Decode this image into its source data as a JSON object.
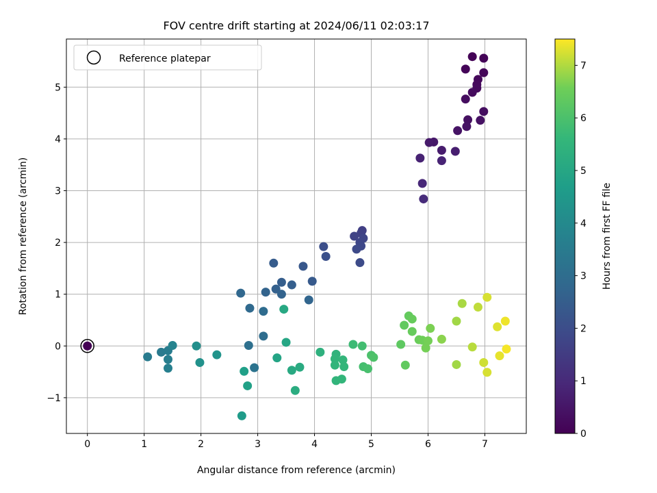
{
  "chart_data": {
    "type": "scatter",
    "title": "FOV centre drift starting at 2024/06/11 02:03:17",
    "xlabel": "Angular distance from reference (arcmin)",
    "ylabel": "Rotation from reference (arcmin)",
    "colorbar_label": "Hours from first FF file",
    "xlim": [
      -0.37,
      7.73
    ],
    "ylim": [
      -1.69,
      5.93
    ],
    "x_ticks": [
      0,
      1,
      2,
      3,
      4,
      5,
      6,
      7
    ],
    "y_ticks": [
      -1,
      0,
      1,
      2,
      3,
      4,
      5
    ],
    "colorbar_range": [
      0,
      7.5
    ],
    "colorbar_ticks": [
      0,
      1,
      2,
      3,
      4,
      5,
      6,
      7
    ],
    "grid": true,
    "legend_position": "top-left",
    "colormap": "viridis",
    "legend": [
      {
        "label": "Reference platepar",
        "marker": "open-circle"
      }
    ],
    "reference_point": {
      "x": 0,
      "y": 0,
      "hours": 0
    },
    "points": [
      {
        "x": 6.78,
        "y": 5.59,
        "h": 0.05
      },
      {
        "x": 6.98,
        "y": 5.56,
        "h": 0.08
      },
      {
        "x": 6.66,
        "y": 5.35,
        "h": 0.1
      },
      {
        "x": 6.98,
        "y": 5.28,
        "h": 0.13
      },
      {
        "x": 6.88,
        "y": 5.15,
        "h": 0.16
      },
      {
        "x": 6.86,
        "y": 5.05,
        "h": 0.19
      },
      {
        "x": 6.86,
        "y": 4.98,
        "h": 0.22
      },
      {
        "x": 6.78,
        "y": 4.9,
        "h": 0.25
      },
      {
        "x": 6.66,
        "y": 4.77,
        "h": 0.28
      },
      {
        "x": 6.98,
        "y": 4.53,
        "h": 0.32
      },
      {
        "x": 6.7,
        "y": 4.37,
        "h": 0.35
      },
      {
        "x": 6.92,
        "y": 4.36,
        "h": 0.38
      },
      {
        "x": 6.68,
        "y": 4.24,
        "h": 0.41
      },
      {
        "x": 6.52,
        "y": 4.16,
        "h": 0.44
      },
      {
        "x": 6.1,
        "y": 3.94,
        "h": 0.55
      },
      {
        "x": 6.02,
        "y": 3.93,
        "h": 0.6
      },
      {
        "x": 6.24,
        "y": 3.78,
        "h": 0.65
      },
      {
        "x": 6.48,
        "y": 3.76,
        "h": 0.7
      },
      {
        "x": 5.86,
        "y": 3.63,
        "h": 0.8
      },
      {
        "x": 6.24,
        "y": 3.58,
        "h": 0.85
      },
      {
        "x": 5.9,
        "y": 3.14,
        "h": 0.95
      },
      {
        "x": 5.92,
        "y": 2.84,
        "h": 1.05
      },
      {
        "x": 4.84,
        "y": 2.23,
        "h": 1.6
      },
      {
        "x": 4.82,
        "y": 2.18,
        "h": 1.65
      },
      {
        "x": 4.7,
        "y": 2.12,
        "h": 1.7
      },
      {
        "x": 4.86,
        "y": 2.08,
        "h": 1.75
      },
      {
        "x": 4.8,
        "y": 2.0,
        "h": 1.8
      },
      {
        "x": 4.82,
        "y": 1.93,
        "h": 1.85
      },
      {
        "x": 4.74,
        "y": 1.87,
        "h": 1.9
      },
      {
        "x": 4.8,
        "y": 1.61,
        "h": 1.95
      },
      {
        "x": 4.16,
        "y": 1.92,
        "h": 2.05
      },
      {
        "x": 4.2,
        "y": 1.73,
        "h": 2.1
      },
      {
        "x": 3.8,
        "y": 1.54,
        "h": 2.3
      },
      {
        "x": 3.28,
        "y": 1.6,
        "h": 2.45
      },
      {
        "x": 3.96,
        "y": 1.25,
        "h": 2.4
      },
      {
        "x": 3.42,
        "y": 1.23,
        "h": 2.5
      },
      {
        "x": 3.6,
        "y": 1.18,
        "h": 2.55
      },
      {
        "x": 3.32,
        "y": 1.1,
        "h": 2.6
      },
      {
        "x": 3.14,
        "y": 1.04,
        "h": 2.7
      },
      {
        "x": 3.42,
        "y": 1.0,
        "h": 2.65
      },
      {
        "x": 2.7,
        "y": 1.02,
        "h": 2.8
      },
      {
        "x": 3.9,
        "y": 0.89,
        "h": 2.75
      },
      {
        "x": 2.86,
        "y": 0.73,
        "h": 2.9
      },
      {
        "x": 3.1,
        "y": 0.67,
        "h": 2.95
      },
      {
        "x": 3.1,
        "y": 0.19,
        "h": 3.0
      },
      {
        "x": 2.84,
        "y": 0.01,
        "h": 3.1
      },
      {
        "x": 2.94,
        "y": -0.42,
        "h": 3.2
      },
      {
        "x": 1.3,
        "y": -0.12,
        "h": 3.45
      },
      {
        "x": 1.06,
        "y": -0.21,
        "h": 3.5
      },
      {
        "x": 1.42,
        "y": -0.09,
        "h": 3.55
      },
      {
        "x": 1.42,
        "y": -0.26,
        "h": 3.6
      },
      {
        "x": 1.42,
        "y": -0.43,
        "h": 3.65
      },
      {
        "x": 1.5,
        "y": 0.01,
        "h": 3.8
      },
      {
        "x": 1.92,
        "y": 0.0,
        "h": 4.2
      },
      {
        "x": 1.98,
        "y": -0.32,
        "h": 4.25
      },
      {
        "x": 2.28,
        "y": -0.17,
        "h": 4.35
      },
      {
        "x": 2.72,
        "y": -1.35,
        "h": 4.6
      },
      {
        "x": 2.76,
        "y": -0.49,
        "h": 4.75
      },
      {
        "x": 2.82,
        "y": -0.77,
        "h": 4.8
      },
      {
        "x": 3.34,
        "y": -0.23,
        "h": 4.9
      },
      {
        "x": 3.5,
        "y": 0.07,
        "h": 5.0
      },
      {
        "x": 3.46,
        "y": 0.71,
        "h": 5.05
      },
      {
        "x": 3.6,
        "y": -0.47,
        "h": 5.1
      },
      {
        "x": 3.74,
        "y": -0.41,
        "h": 5.15
      },
      {
        "x": 3.66,
        "y": -0.86,
        "h": 5.2
      },
      {
        "x": 4.1,
        "y": -0.12,
        "h": 5.35
      },
      {
        "x": 4.38,
        "y": -0.16,
        "h": 5.45
      },
      {
        "x": 4.36,
        "y": -0.25,
        "h": 5.5
      },
      {
        "x": 4.36,
        "y": -0.37,
        "h": 5.5
      },
      {
        "x": 4.5,
        "y": -0.27,
        "h": 5.55
      },
      {
        "x": 4.52,
        "y": -0.4,
        "h": 5.55
      },
      {
        "x": 4.38,
        "y": -0.67,
        "h": 5.5
      },
      {
        "x": 4.48,
        "y": -0.64,
        "h": 5.55
      },
      {
        "x": 4.68,
        "y": 0.03,
        "h": 5.75
      },
      {
        "x": 4.84,
        "y": 0.0,
        "h": 5.85
      },
      {
        "x": 4.86,
        "y": -0.4,
        "h": 5.9
      },
      {
        "x": 4.94,
        "y": -0.44,
        "h": 5.95
      },
      {
        "x": 5.0,
        "y": -0.18,
        "h": 6.0
      },
      {
        "x": 5.04,
        "y": -0.22,
        "h": 6.05
      },
      {
        "x": 5.52,
        "y": 0.03,
        "h": 6.3
      },
      {
        "x": 5.58,
        "y": 0.4,
        "h": 6.35
      },
      {
        "x": 5.6,
        "y": -0.37,
        "h": 6.35
      },
      {
        "x": 5.66,
        "y": 0.58,
        "h": 6.4
      },
      {
        "x": 5.72,
        "y": 0.52,
        "h": 6.45
      },
      {
        "x": 5.72,
        "y": 0.28,
        "h": 6.45
      },
      {
        "x": 5.84,
        "y": 0.12,
        "h": 6.5
      },
      {
        "x": 5.9,
        "y": 0.11,
        "h": 6.55
      },
      {
        "x": 5.96,
        "y": -0.04,
        "h": 6.6
      },
      {
        "x": 6.0,
        "y": 0.1,
        "h": 6.6
      },
      {
        "x": 6.04,
        "y": 0.34,
        "h": 6.65
      },
      {
        "x": 6.24,
        "y": 0.13,
        "h": 6.75
      },
      {
        "x": 6.5,
        "y": 0.48,
        "h": 6.9
      },
      {
        "x": 6.5,
        "y": -0.36,
        "h": 6.9
      },
      {
        "x": 6.6,
        "y": 0.82,
        "h": 6.95
      },
      {
        "x": 6.78,
        "y": -0.02,
        "h": 7.05
      },
      {
        "x": 6.88,
        "y": 0.75,
        "h": 7.1
      },
      {
        "x": 6.98,
        "y": -0.32,
        "h": 7.2
      },
      {
        "x": 7.04,
        "y": 0.94,
        "h": 7.25
      },
      {
        "x": 7.04,
        "y": -0.51,
        "h": 7.25
      },
      {
        "x": 7.22,
        "y": 0.37,
        "h": 7.3
      },
      {
        "x": 7.26,
        "y": -0.19,
        "h": 7.35
      },
      {
        "x": 7.36,
        "y": 0.48,
        "h": 7.4
      },
      {
        "x": 7.38,
        "y": -0.06,
        "h": 7.45
      }
    ]
  }
}
